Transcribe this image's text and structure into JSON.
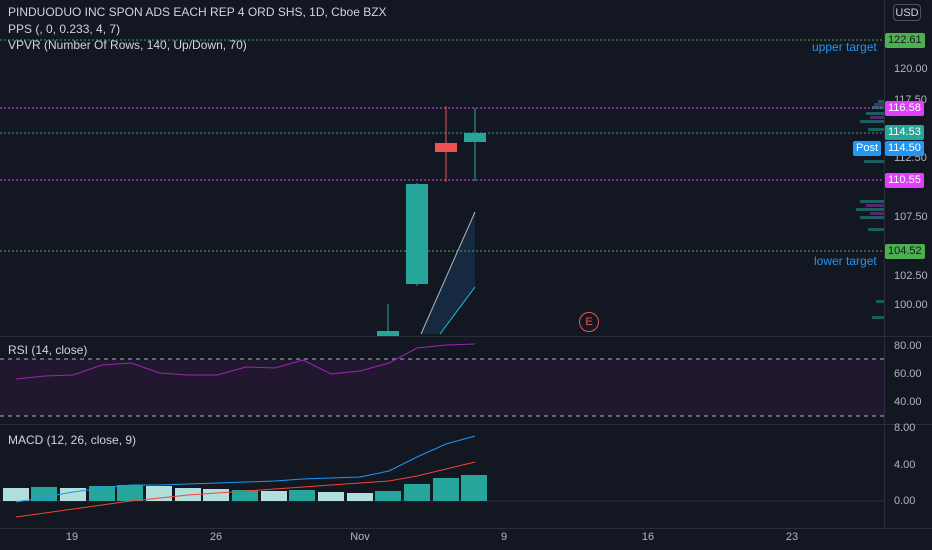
{
  "header": {
    "symbol_title": "PINDUODUO INC SPON ADS EACH REP 4 ORD SHS, 1D, Cboe BZX",
    "pps_legend": "PPS (, 0, 0.233, 4, 7)",
    "vpvr_legend": "VPVR (Number Of Rows, 140, Up/Down, 70)",
    "currency_button": "USD"
  },
  "price_axis": {
    "ticks": [
      "120.00",
      "117.50",
      "112.50",
      "107.50",
      "102.50",
      "100.00"
    ],
    "tags": [
      {
        "label": "122.61",
        "color": "#4caf50"
      },
      {
        "label": "116.58",
        "color": "#e040fb"
      },
      {
        "label": "114.53",
        "color": "#26a69a"
      },
      {
        "label": "114.50",
        "color": "#2196f3"
      },
      {
        "label": "110.55",
        "color": "#e040fb"
      },
      {
        "label": "104.52",
        "color": "#4caf50"
      }
    ],
    "post_label": "Post"
  },
  "annotations": {
    "upper_target": "upper target",
    "lower_target": "lower target",
    "earnings_marker": "E"
  },
  "rsi": {
    "legend": "RSI (14, close)",
    "ticks": [
      "80.00",
      "60.00",
      "40.00"
    ]
  },
  "macd": {
    "legend": "MACD (12, 26, close, 9)",
    "ticks": [
      "8.00",
      "4.00",
      "0.00"
    ]
  },
  "time_axis": {
    "labels": [
      "19",
      "26",
      "Nov",
      "9",
      "16",
      "23"
    ]
  },
  "colors": {
    "background": "#131722",
    "up": "#26a69a",
    "down": "#ef5350",
    "target_line": "#4caf50",
    "level_line": "#e040fb",
    "rsi_line": "#9c27b0",
    "macd_line": "#2196f3",
    "signal_line": "#f44336"
  }
}
